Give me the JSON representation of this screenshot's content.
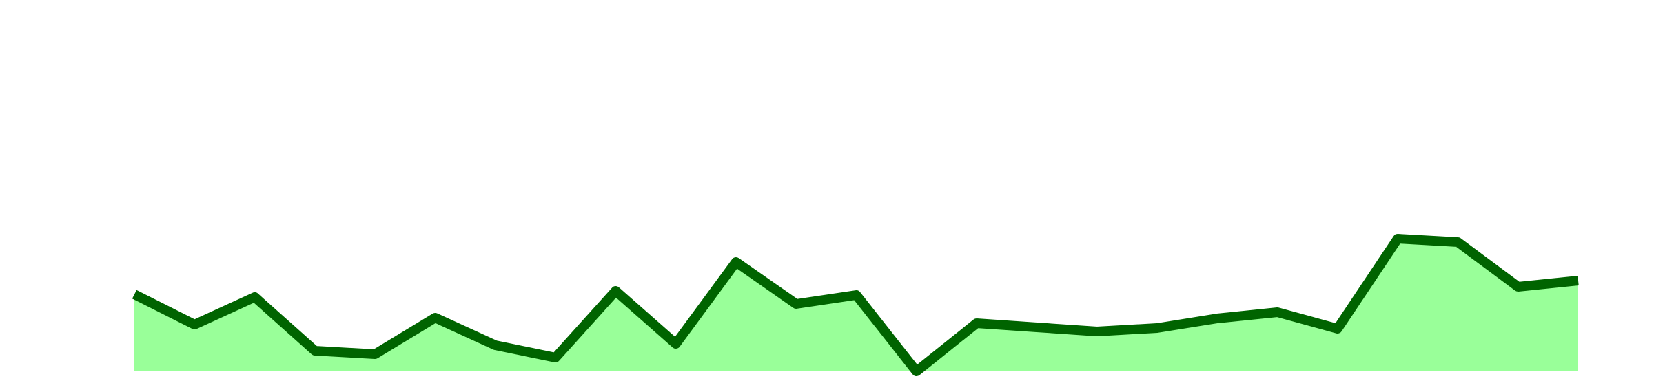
{
  "chart_data": {
    "type": "area",
    "values": [
      112,
      68,
      108,
      30,
      25,
      78,
      38,
      20,
      117,
      40,
      159,
      98,
      111,
      0,
      70,
      64,
      58,
      63,
      77,
      86,
      62,
      193,
      188,
      123,
      132
    ],
    "color": "#006400",
    "fill": "#99ff99",
    "ylim": [
      0,
      540
    ]
  }
}
